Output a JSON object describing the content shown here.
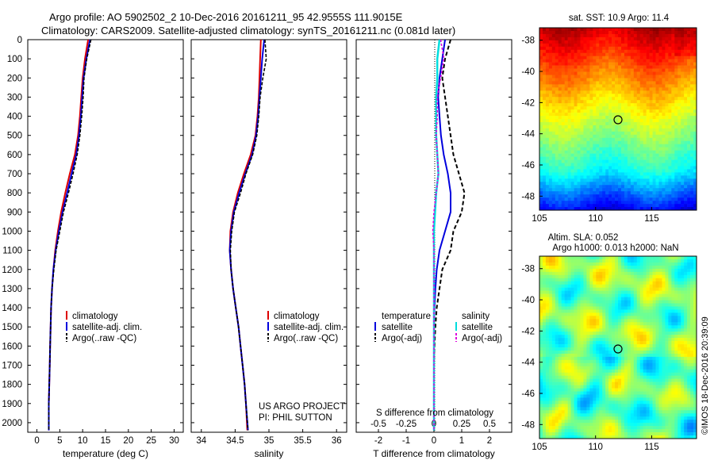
{
  "header": {
    "line1": "Argo profile: AO 5902502_2 10-Dec-2016 20161211_95 42.9555S 111.9015E",
    "line2": "Climatology: CARS2009. Satellite-adjusted climatology: synTS_20161211.nc (0.081d later)"
  },
  "depth_ticks": [
    "0",
    "100",
    "200",
    "300",
    "400",
    "500",
    "600",
    "700",
    "800",
    "900",
    "1000",
    "1100",
    "1200",
    "1300",
    "1400",
    "1500",
    "1600",
    "1700",
    "1800",
    "1900",
    "2000"
  ],
  "colors": {
    "climatology": "#dd0000",
    "satellite": "#0000dd",
    "argo": "#000000",
    "sal_satellite": "#00dddd",
    "sal_argo": "#dd00dd"
  },
  "panel_temp": {
    "xlabel": "temperature (deg C)",
    "xticks": [
      "0",
      "5",
      "10",
      "15",
      "20",
      "25",
      "30"
    ],
    "legend": [
      "climatology",
      "satellite-adj. clim.",
      "Argo(..raw -QC)"
    ]
  },
  "panel_sal": {
    "xlabel": "salinity",
    "xticks": [
      "34",
      "34.5",
      "35",
      "35.5",
      "36"
    ],
    "legend": [
      "climatology",
      "satellite-adj. clim.",
      "Argo(..raw -QC)"
    ],
    "credit1": "US ARGO PROJECT",
    "credit2": "PI: PHIL SUTTON"
  },
  "panel_diff": {
    "xlabel": "T difference from climatology",
    "toplabel": "S difference from climatology",
    "xticks": [
      "-2",
      "-1",
      "0",
      "1",
      "2"
    ],
    "xticks_s": [
      "-0.5",
      "-0.25",
      "0",
      "0.25",
      "0.5"
    ],
    "legend_t_title": "temperature",
    "legend_s_title": "salinity",
    "legend_t": [
      "satellite",
      "Argo(-adj)"
    ],
    "legend_s": [
      "satellite",
      "Argo(-adj)"
    ]
  },
  "map_sst": {
    "title": "sat. SST: 10.9 Argo: 11.4",
    "yticks": [
      "-38",
      "-40",
      "-42",
      "-44",
      "-46",
      "-48"
    ],
    "xticks": [
      "105",
      "110",
      "115"
    ]
  },
  "map_sla": {
    "title1": "Altim. SLA: 0.052",
    "title2": "Argo h1000: 0.013 h2000: NaN",
    "yticks": [
      "-38",
      "-40",
      "-42",
      "-44",
      "-46",
      "-48"
    ],
    "xticks": [
      "105",
      "110",
      "115"
    ]
  },
  "footer": "©IMOS 18-Dec-2016 20:39:09",
  "chart_data": [
    {
      "type": "line",
      "xlabel": "temperature (deg C)",
      "ylabel": "",
      "xlim": [
        -2,
        32
      ],
      "ylim": [
        2050,
        0
      ],
      "series": [
        {
          "name": "climatology",
          "x": [
            11.2,
            10.5,
            10.0,
            9.7,
            9.4,
            9.0,
            8.3,
            7.2,
            6.2,
            5.3,
            4.6,
            4.0,
            3.6,
            3.3,
            3.1,
            3.0,
            2.9,
            2.8,
            2.7,
            2.6,
            2.6
          ],
          "y": [
            0,
            100,
            200,
            300,
            400,
            500,
            600,
            700,
            800,
            900,
            1000,
            1100,
            1200,
            1300,
            1400,
            1500,
            1600,
            1700,
            1800,
            1900,
            2040
          ]
        },
        {
          "name": "satellite-adj. clim.",
          "x": [
            11.6,
            10.8,
            10.2,
            9.9,
            9.6,
            9.2,
            8.6,
            7.6,
            6.6,
            5.6,
            4.8,
            4.1,
            3.6,
            3.3,
            3.1,
            3.0,
            2.9,
            2.8,
            2.7,
            2.6,
            2.6
          ],
          "y": [
            0,
            100,
            200,
            300,
            400,
            500,
            600,
            700,
            800,
            900,
            1000,
            1100,
            1200,
            1300,
            1400,
            1500,
            1600,
            1700,
            1800,
            1900,
            2040
          ]
        },
        {
          "name": "Argo(..raw -QC)",
          "x": [
            11.8,
            10.9,
            10.3,
            10.1,
            9.8,
            9.4,
            8.8,
            7.9,
            6.9,
            5.8,
            5.0,
            4.2,
            3.7,
            3.3,
            3.1,
            3.0,
            2.9,
            2.8,
            2.7,
            2.6,
            2.6
          ],
          "y": [
            0,
            100,
            200,
            300,
            400,
            500,
            600,
            700,
            800,
            900,
            1000,
            1100,
            1200,
            1300,
            1400,
            1500,
            1600,
            1700,
            1800,
            1900,
            2040
          ]
        }
      ]
    },
    {
      "type": "line",
      "xlabel": "salinity",
      "ylabel": "",
      "xlim": [
        33.85,
        36.15
      ],
      "ylim": [
        2050,
        0
      ],
      "series": [
        {
          "name": "climatology",
          "x": [
            34.88,
            34.87,
            34.86,
            34.85,
            34.83,
            34.8,
            34.73,
            34.63,
            34.54,
            34.47,
            34.43,
            34.42,
            34.44,
            34.47,
            34.51,
            34.55,
            34.58,
            34.61,
            34.64,
            34.66,
            34.68
          ],
          "y": [
            0,
            100,
            200,
            300,
            400,
            500,
            600,
            700,
            800,
            900,
            1000,
            1100,
            1200,
            1300,
            1400,
            1500,
            1600,
            1700,
            1800,
            1900,
            2040
          ]
        },
        {
          "name": "satellite-adj. clim.",
          "x": [
            34.93,
            34.9,
            34.88,
            34.86,
            34.84,
            34.81,
            34.75,
            34.65,
            34.56,
            34.48,
            34.44,
            34.42,
            34.44,
            34.47,
            34.51,
            34.55,
            34.58,
            34.61,
            34.64,
            34.66,
            34.69
          ],
          "y": [
            0,
            100,
            200,
            300,
            400,
            500,
            600,
            700,
            800,
            900,
            1000,
            1100,
            1200,
            1300,
            1400,
            1500,
            1600,
            1700,
            1800,
            1900,
            2040
          ]
        },
        {
          "name": "Argo(..raw -QC)",
          "x": [
            34.94,
            34.96,
            34.91,
            34.87,
            34.85,
            34.82,
            34.76,
            34.66,
            34.58,
            34.49,
            34.45,
            34.43,
            34.44,
            34.47,
            34.51,
            34.55,
            34.58,
            34.61,
            34.64,
            34.66,
            34.69
          ],
          "y": [
            0,
            100,
            200,
            300,
            400,
            500,
            600,
            700,
            800,
            900,
            1000,
            1100,
            1200,
            1300,
            1400,
            1500,
            1600,
            1700,
            1800,
            1900,
            2040
          ]
        }
      ]
    },
    {
      "type": "line",
      "xlabel": "T difference from climatology",
      "ylabel": "",
      "xlim": [
        -2.8,
        2.8
      ],
      "ylim": [
        2050,
        0
      ],
      "series": [
        {
          "name": "temperature satellite",
          "x": [
            0.4,
            0.3,
            0.2,
            0.15,
            0.2,
            0.25,
            0.35,
            0.5,
            0.6,
            0.6,
            0.4,
            0.2,
            0.1,
            0.05,
            0.02,
            0.0,
            0.0,
            0.0,
            0.0,
            0.0,
            0.0
          ],
          "y": [
            0,
            100,
            200,
            300,
            400,
            500,
            600,
            700,
            800,
            900,
            1000,
            1100,
            1200,
            1300,
            1400,
            1500,
            1600,
            1700,
            1800,
            1900,
            2040
          ]
        },
        {
          "name": "temperature Argo(-adj)",
          "x": [
            0.6,
            0.4,
            0.3,
            0.4,
            0.5,
            0.6,
            0.7,
            0.9,
            1.1,
            1.0,
            0.7,
            0.6,
            0.3,
            0.2,
            0.1,
            0.05,
            0.02,
            0.0,
            0.0,
            0.0,
            0.0
          ],
          "y": [
            0,
            100,
            200,
            300,
            400,
            500,
            600,
            700,
            800,
            900,
            1000,
            1100,
            1200,
            1300,
            1400,
            1500,
            1600,
            1700,
            1800,
            1900,
            2040
          ]
        },
        {
          "name": "salinity satellite",
          "x": [
            0.05,
            0.03,
            0.03,
            0.02,
            0.02,
            0.02,
            0.03,
            0.04,
            0.02,
            0.01,
            0.0,
            0.0,
            0.0,
            0.0,
            0.0,
            0.0,
            0.0,
            0.0,
            0.0,
            0.0,
            0.0
          ],
          "y": [
            0,
            100,
            200,
            300,
            400,
            500,
            600,
            700,
            800,
            900,
            1000,
            1100,
            1200,
            1300,
            1400,
            1500,
            1600,
            1700,
            1800,
            1900,
            2040
          ]
        },
        {
          "name": "salinity Argo(-adj)",
          "x": [
            0.06,
            0.09,
            0.06,
            0.03,
            0.03,
            0.02,
            0.03,
            0.04,
            0.02,
            0.0,
            -0.01,
            0.0,
            0.0,
            0.0,
            0.0,
            0.0,
            0.0,
            0.0,
            0.0,
            0.0,
            0.0
          ],
          "y": [
            0,
            100,
            200,
            300,
            400,
            500,
            600,
            700,
            800,
            900,
            1000,
            1100,
            1200,
            1300,
            1400,
            1500,
            1600,
            1700,
            1800,
            1900,
            2040
          ]
        }
      ]
    },
    {
      "type": "heatmap",
      "title": "sat. SST: 10.9 Argo: 11.4",
      "xlim": [
        105,
        119
      ],
      "ylim": [
        -49,
        -37
      ]
    },
    {
      "type": "heatmap",
      "title": "Altim. SLA: 0.052",
      "xlim": [
        105,
        119
      ],
      "ylim": [
        -49,
        -37
      ]
    }
  ]
}
